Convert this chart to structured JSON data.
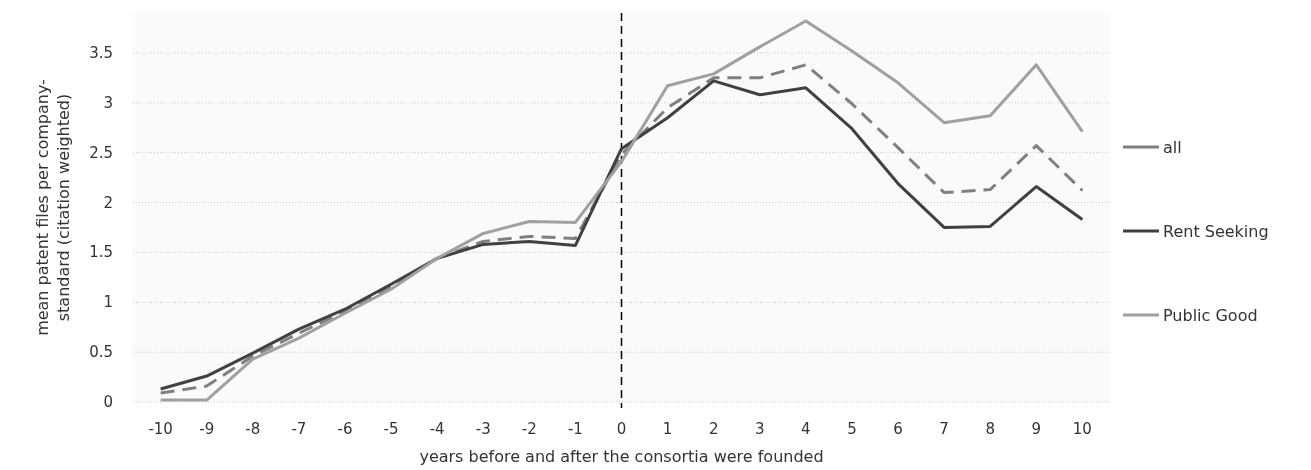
{
  "chart_data": {
    "type": "line",
    "xlabel": "years before and after the consortia were founded",
    "ylabel": "mean patent files per company-\nstandard (citation weighted)",
    "x": [
      -10,
      -9,
      -8,
      -7,
      -6,
      -5,
      -4,
      -3,
      -2,
      -1,
      0,
      1,
      2,
      3,
      4,
      5,
      6,
      7,
      8,
      9,
      10
    ],
    "xlim": [
      -10.6,
      10.6
    ],
    "xticks": [
      -10,
      -9,
      -8,
      -7,
      -6,
      -5,
      -4,
      -3,
      -2,
      -1,
      0,
      1,
      2,
      3,
      4,
      5,
      6,
      7,
      8,
      9,
      10
    ],
    "ylim": [
      0,
      3.9
    ],
    "yticks": [
      0,
      0.5,
      1,
      1.5,
      2,
      2.5,
      3,
      3.5
    ],
    "grid": "y",
    "legend": "right",
    "marker": "none",
    "ref_lines": [
      {
        "axis": "x",
        "value": 0,
        "color": "#000000",
        "line_style": "dashed"
      }
    ],
    "series": [
      {
        "name": "all",
        "color": "#7f7f7f",
        "line_style": "dashed",
        "values": [
          0.09,
          0.16,
          0.46,
          0.69,
          0.91,
          1.16,
          1.44,
          1.61,
          1.66,
          1.64,
          2.48,
          2.95,
          3.25,
          3.25,
          3.38,
          2.99,
          2.55,
          2.1,
          2.13,
          2.57,
          2.12
        ]
      },
      {
        "name": "Rent Seeking",
        "color": "#404040",
        "line_style": "solid",
        "values": [
          0.13,
          0.26,
          0.49,
          0.73,
          0.93,
          1.18,
          1.44,
          1.58,
          1.61,
          1.57,
          2.54,
          2.85,
          3.22,
          3.08,
          3.15,
          2.74,
          2.19,
          1.75,
          1.76,
          2.16,
          1.83
        ]
      },
      {
        "name": "Public Good",
        "color": "#a0a0a0",
        "line_style": "solid",
        "values": [
          0.02,
          0.02,
          0.43,
          0.64,
          0.89,
          1.13,
          1.44,
          1.69,
          1.81,
          1.8,
          2.41,
          3.17,
          3.29,
          3.56,
          3.82,
          3.52,
          3.2,
          2.8,
          2.87,
          3.38,
          2.71
        ]
      }
    ]
  }
}
